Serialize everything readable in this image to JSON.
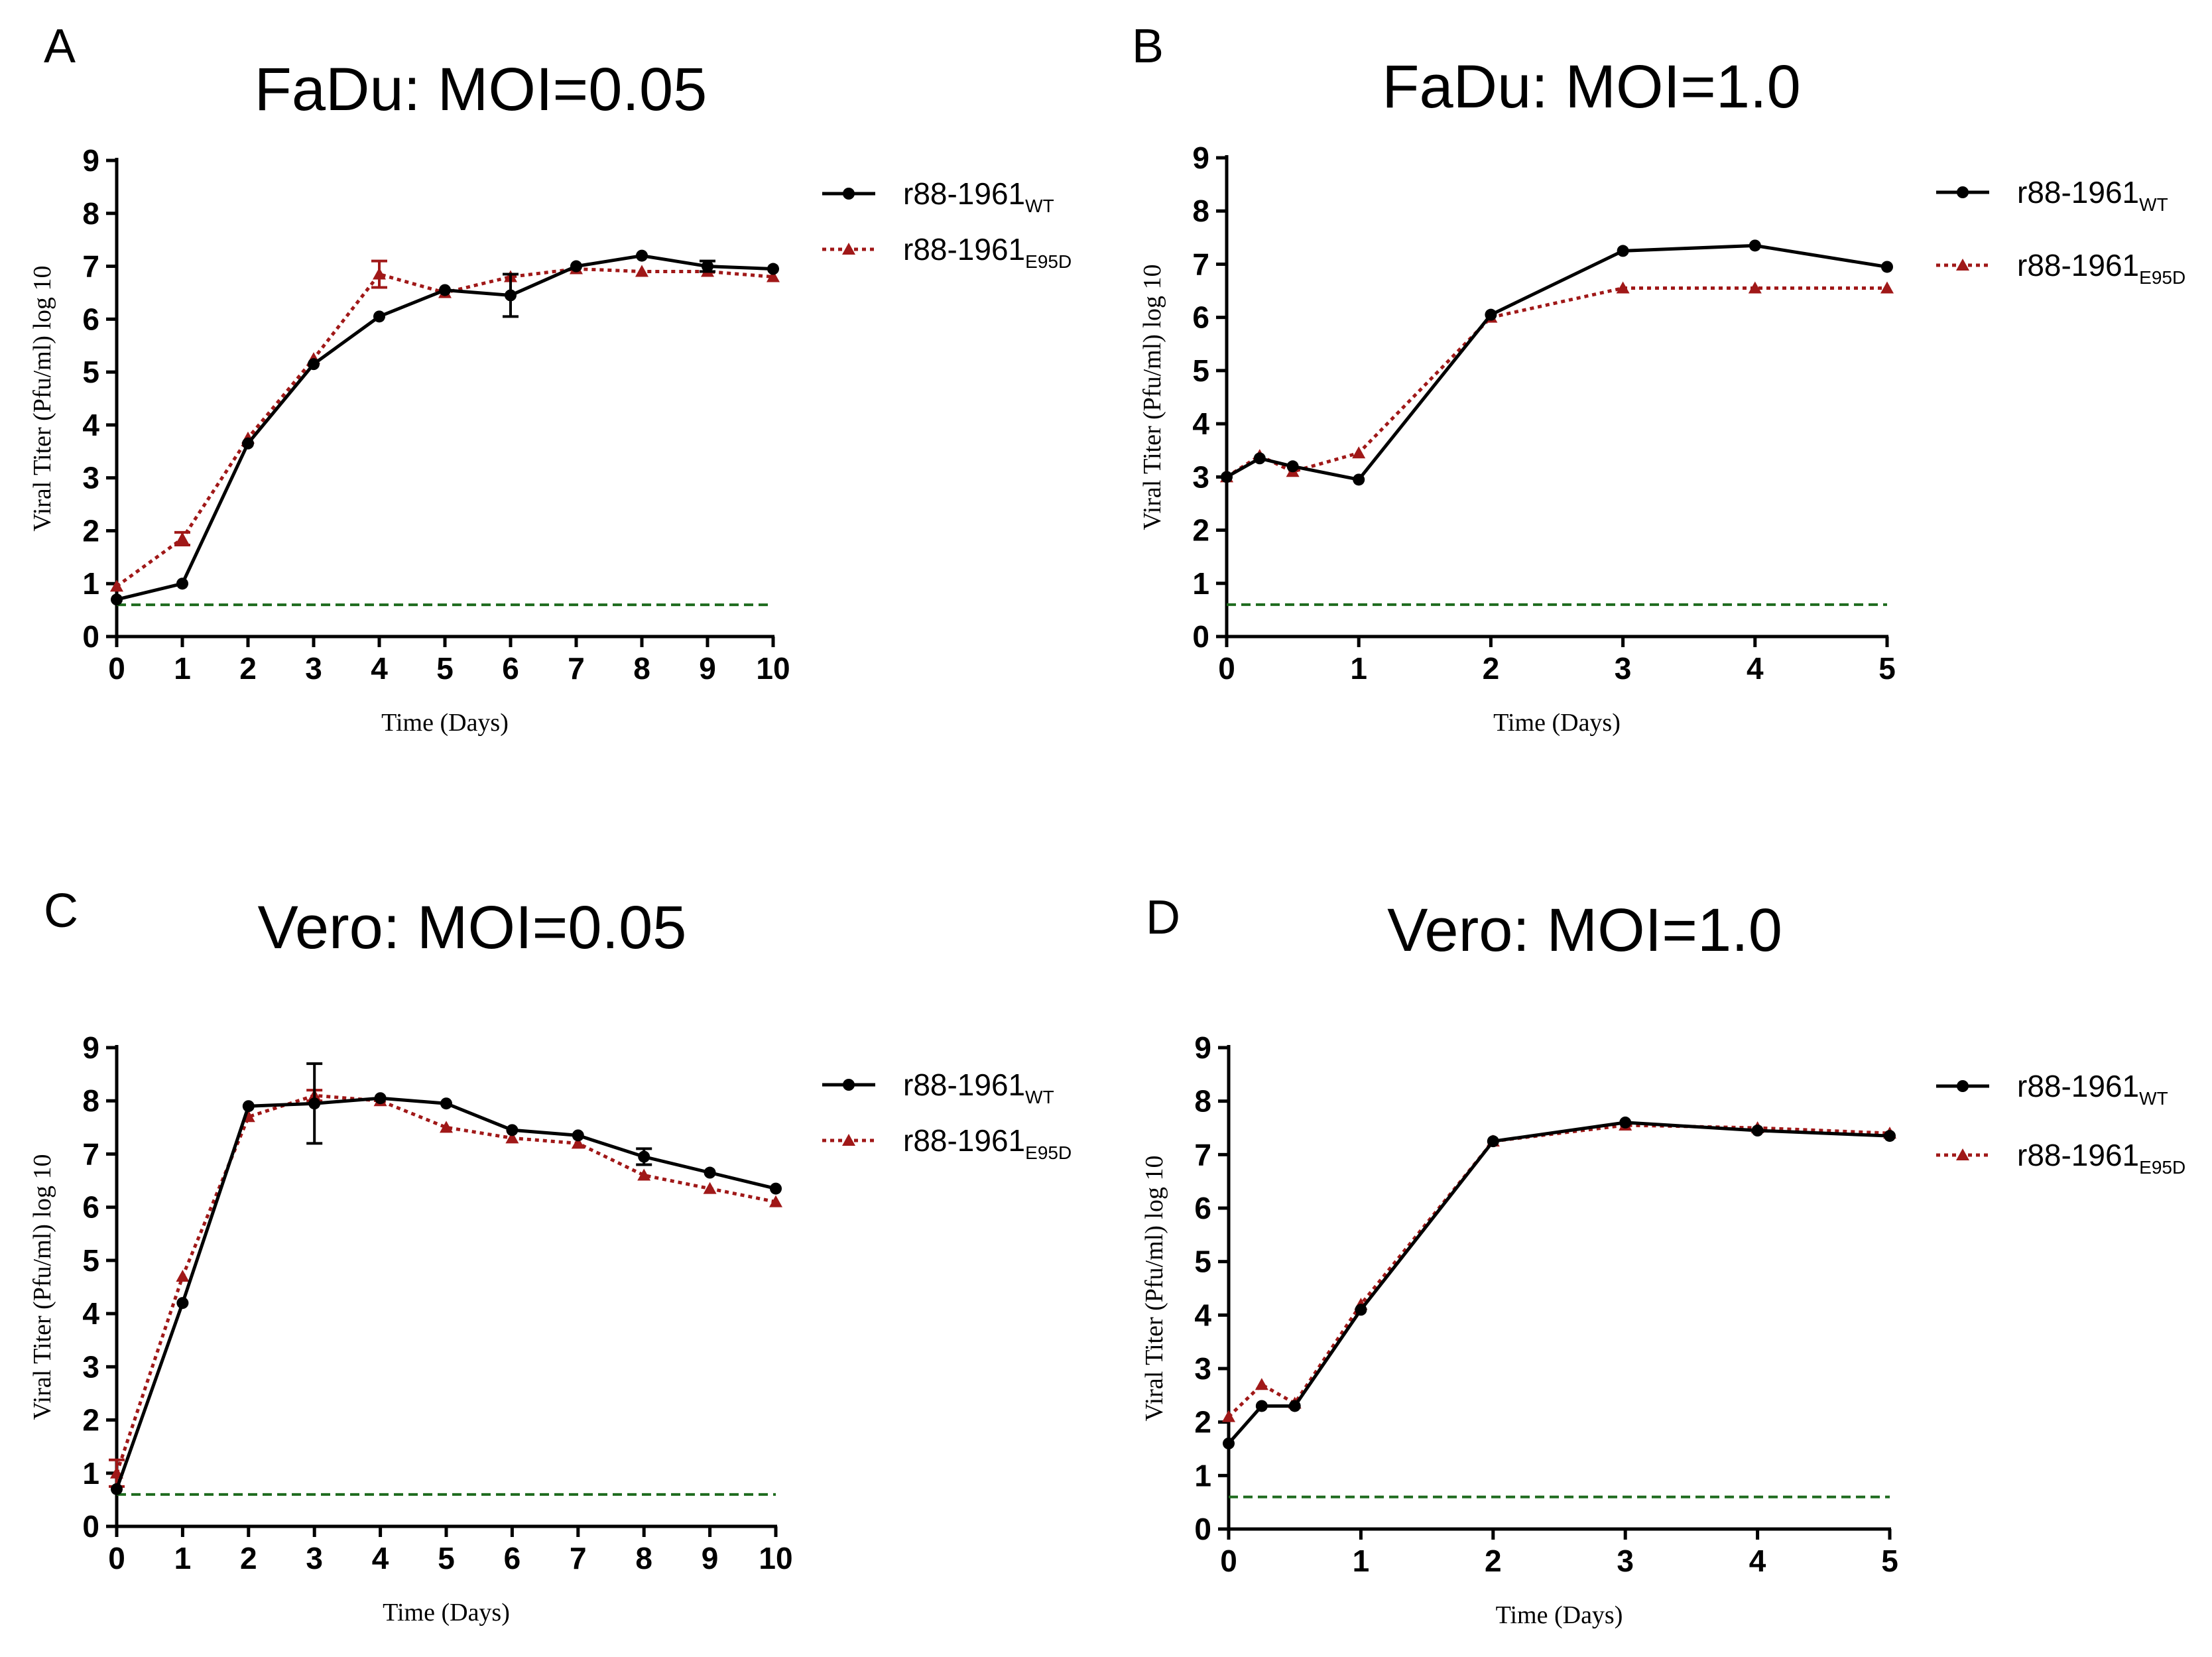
{
  "colors": {
    "wt": "#000000",
    "mut": "#a01818",
    "threshold": "#1e6b1e"
  },
  "legend": {
    "wt_base": "r88-1961",
    "wt_sub": "WT",
    "mut_base": "r88-1961",
    "mut_sub": "E95D"
  },
  "chart_data": [
    {
      "letter": "A",
      "type": "line",
      "title": "FaDu: MOI=0.05",
      "xlabel": "Time (Days)",
      "ylabel": "Viral Titer (Pfu/ml) log 10",
      "xlim": [
        0,
        10
      ],
      "ylim": [
        0,
        9
      ],
      "xticks": [
        0,
        1,
        2,
        3,
        4,
        5,
        6,
        7,
        8,
        9,
        10
      ],
      "yticks": [
        0,
        1,
        2,
        3,
        4,
        5,
        6,
        7,
        8,
        9
      ],
      "threshold": 0.6,
      "series": [
        {
          "name": "r88-1961 WT",
          "x": [
            0,
            1,
            2,
            3,
            4,
            5,
            6,
            7,
            8,
            9,
            10
          ],
          "y": [
            0.7,
            1.0,
            3.65,
            5.15,
            6.05,
            6.55,
            6.45,
            7.0,
            7.2,
            7.0,
            6.95
          ],
          "err": [
            0,
            0,
            0,
            0,
            0,
            0,
            0.4,
            0,
            0,
            0.1,
            0
          ]
        },
        {
          "name": "r88-1961 E95D",
          "x": [
            0,
            1,
            2,
            3,
            4,
            5,
            6,
            7,
            8,
            9,
            10
          ],
          "y": [
            0.95,
            1.85,
            3.75,
            5.25,
            6.85,
            6.5,
            6.8,
            6.95,
            6.9,
            6.9,
            6.8
          ],
          "err": [
            0,
            0.12,
            0,
            0,
            0.25,
            0,
            0,
            0,
            0,
            0,
            0
          ]
        }
      ]
    },
    {
      "letter": "B",
      "type": "line",
      "title": "FaDu: MOI=1.0",
      "xlabel": "Time (Days)",
      "ylabel": "Viral Titer (Pfu/ml) log 10",
      "xlim": [
        0,
        5
      ],
      "ylim": [
        0,
        9
      ],
      "xticks": [
        0,
        1,
        2,
        3,
        4,
        5
      ],
      "yticks": [
        0,
        1,
        2,
        3,
        4,
        5,
        6,
        7,
        8,
        9
      ],
      "threshold": 0.6,
      "series": [
        {
          "name": "r88-1961 WT",
          "x": [
            0,
            0.25,
            0.5,
            1,
            2,
            3,
            4,
            5
          ],
          "y": [
            3.0,
            3.35,
            3.2,
            2.95,
            6.05,
            7.25,
            7.35,
            6.95
          ],
          "err": [
            0,
            0,
            0,
            0,
            0,
            0,
            0,
            0
          ]
        },
        {
          "name": "r88-1961 E95D",
          "x": [
            0,
            0.25,
            0.5,
            1,
            2,
            3,
            4,
            5
          ],
          "y": [
            3.0,
            3.4,
            3.1,
            3.45,
            6.0,
            6.55,
            6.55,
            6.55
          ],
          "err": [
            0,
            0,
            0,
            0,
            0,
            0,
            0,
            0
          ]
        }
      ]
    },
    {
      "letter": "C",
      "type": "line",
      "title": "Vero: MOI=0.05",
      "xlabel": "Time (Days)",
      "ylabel": "Viral Titer (Pfu/ml) log 10",
      "xlim": [
        0,
        10
      ],
      "ylim": [
        0,
        9
      ],
      "xticks": [
        0,
        1,
        2,
        3,
        4,
        5,
        6,
        7,
        8,
        9,
        10
      ],
      "yticks": [
        0,
        1,
        2,
        3,
        4,
        5,
        6,
        7,
        8,
        9
      ],
      "threshold": 0.6,
      "series": [
        {
          "name": "r88-1961 WT",
          "x": [
            0,
            1,
            2,
            3,
            4,
            5,
            6,
            7,
            8,
            9,
            10
          ],
          "y": [
            0.7,
            4.2,
            7.9,
            7.95,
            8.05,
            7.95,
            7.45,
            7.35,
            6.95,
            6.65,
            6.35
          ],
          "err": [
            0,
            0,
            0,
            0.75,
            0,
            0,
            0,
            0,
            0.15,
            0,
            0
          ]
        },
        {
          "name": "r88-1961 E95D",
          "x": [
            0,
            1,
            2,
            3,
            4,
            5,
            6,
            7,
            8,
            9,
            10
          ],
          "y": [
            1.0,
            4.7,
            7.7,
            8.1,
            8.0,
            7.5,
            7.3,
            7.2,
            6.6,
            6.35,
            6.1
          ],
          "err": [
            0.25,
            0,
            0,
            0.1,
            0,
            0,
            0,
            0,
            0,
            0,
            0
          ]
        }
      ]
    },
    {
      "letter": "D",
      "type": "line",
      "title": "Vero: MOI=1.0",
      "xlabel": "Time (Days)",
      "ylabel": "Viral Titer (Pfu/ml) log 10",
      "xlim": [
        0,
        5
      ],
      "ylim": [
        0,
        9
      ],
      "xticks": [
        0,
        1,
        2,
        3,
        4,
        5
      ],
      "yticks": [
        0,
        1,
        2,
        3,
        4,
        5,
        6,
        7,
        8,
        9
      ],
      "threshold": 0.6,
      "series": [
        {
          "name": "r88-1961 WT",
          "x": [
            0,
            0.25,
            0.5,
            1,
            2,
            3,
            4,
            5
          ],
          "y": [
            1.6,
            2.3,
            2.3,
            4.1,
            7.25,
            7.6,
            7.45,
            7.35
          ],
          "err": [
            0,
            0,
            0,
            0,
            0,
            0,
            0,
            0
          ]
        },
        {
          "name": "r88-1961 E95D",
          "x": [
            0,
            0.25,
            0.5,
            1,
            2,
            3,
            4,
            5
          ],
          "y": [
            2.1,
            2.7,
            2.35,
            4.2,
            7.25,
            7.55,
            7.5,
            7.4
          ],
          "err": [
            0,
            0,
            0,
            0,
            0,
            0,
            0,
            0
          ]
        }
      ]
    }
  ]
}
